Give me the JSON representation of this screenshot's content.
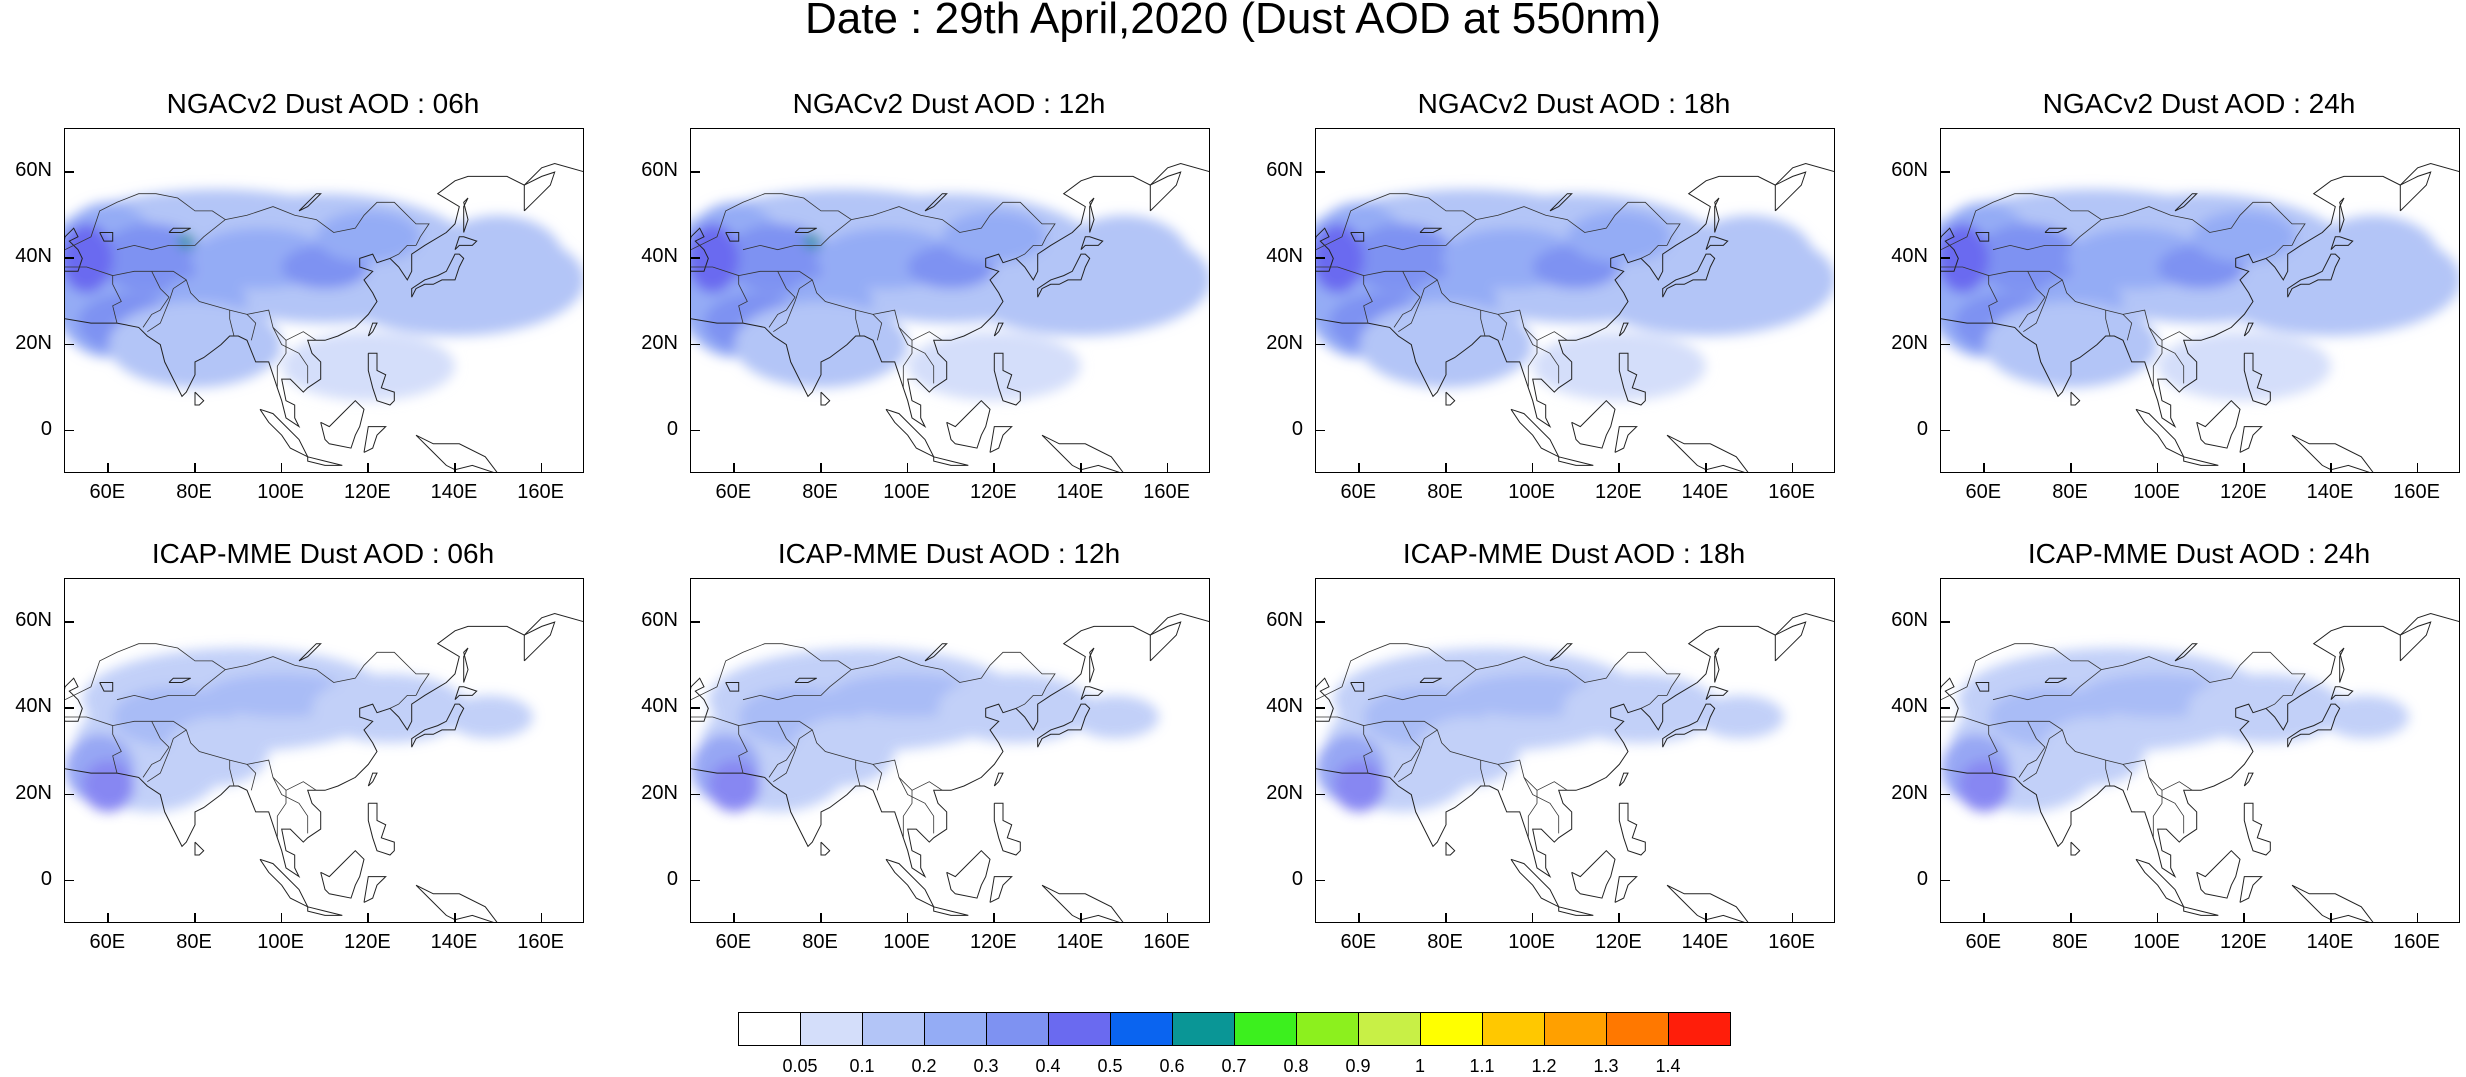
{
  "title": "Date : 29th April,2020 (Dust AOD at 550nm)",
  "panels": [
    {
      "title": "NGACv2 Dust AOD : 06h",
      "intensity": 1.0,
      "extent": "wide",
      "hotspot": true
    },
    {
      "title": "NGACv2 Dust AOD : 12h",
      "intensity": 1.0,
      "extent": "wide",
      "hotspot": true
    },
    {
      "title": "NGACv2 Dust AOD : 18h",
      "intensity": 1.0,
      "extent": "wide",
      "hotspot": false
    },
    {
      "title": "NGACv2 Dust AOD : 24h",
      "intensity": 1.0,
      "extent": "wide",
      "hotspot": false
    },
    {
      "title": "ICAP-MME Dust AOD : 06h",
      "intensity": 0.8,
      "extent": "narrow",
      "hotspot": false
    },
    {
      "title": "ICAP-MME Dust AOD : 12h",
      "intensity": 0.8,
      "extent": "narrow",
      "hotspot": false
    },
    {
      "title": "ICAP-MME Dust AOD : 18h",
      "intensity": 0.8,
      "extent": "narrow",
      "hotspot": false
    },
    {
      "title": "ICAP-MME Dust AOD : 24h",
      "intensity": 0.8,
      "extent": "narrow",
      "hotspot": false
    }
  ],
  "lat_ticks": [
    "60N",
    "40N",
    "20N",
    "0"
  ],
  "lon_ticks": [
    "60E",
    "80E",
    "100E",
    "120E",
    "140E",
    "160E"
  ],
  "colorbar": {
    "labels": [
      "0.05",
      "0.1",
      "0.2",
      "0.3",
      "0.4",
      "0.5",
      "0.6",
      "0.7",
      "0.8",
      "0.9",
      "1",
      "1.1",
      "1.2",
      "1.3",
      "1.4"
    ],
    "colors": [
      "#ffffff",
      "#d4defa",
      "#b3c5f7",
      "#94acf5",
      "#7e92f2",
      "#6a6af0",
      "#0a64f0",
      "#0a9696",
      "#3cf01e",
      "#8cf01e",
      "#c8f046",
      "#ffff00",
      "#ffc800",
      "#ffa000",
      "#ff7800",
      "#ff1e0a"
    ]
  }
}
